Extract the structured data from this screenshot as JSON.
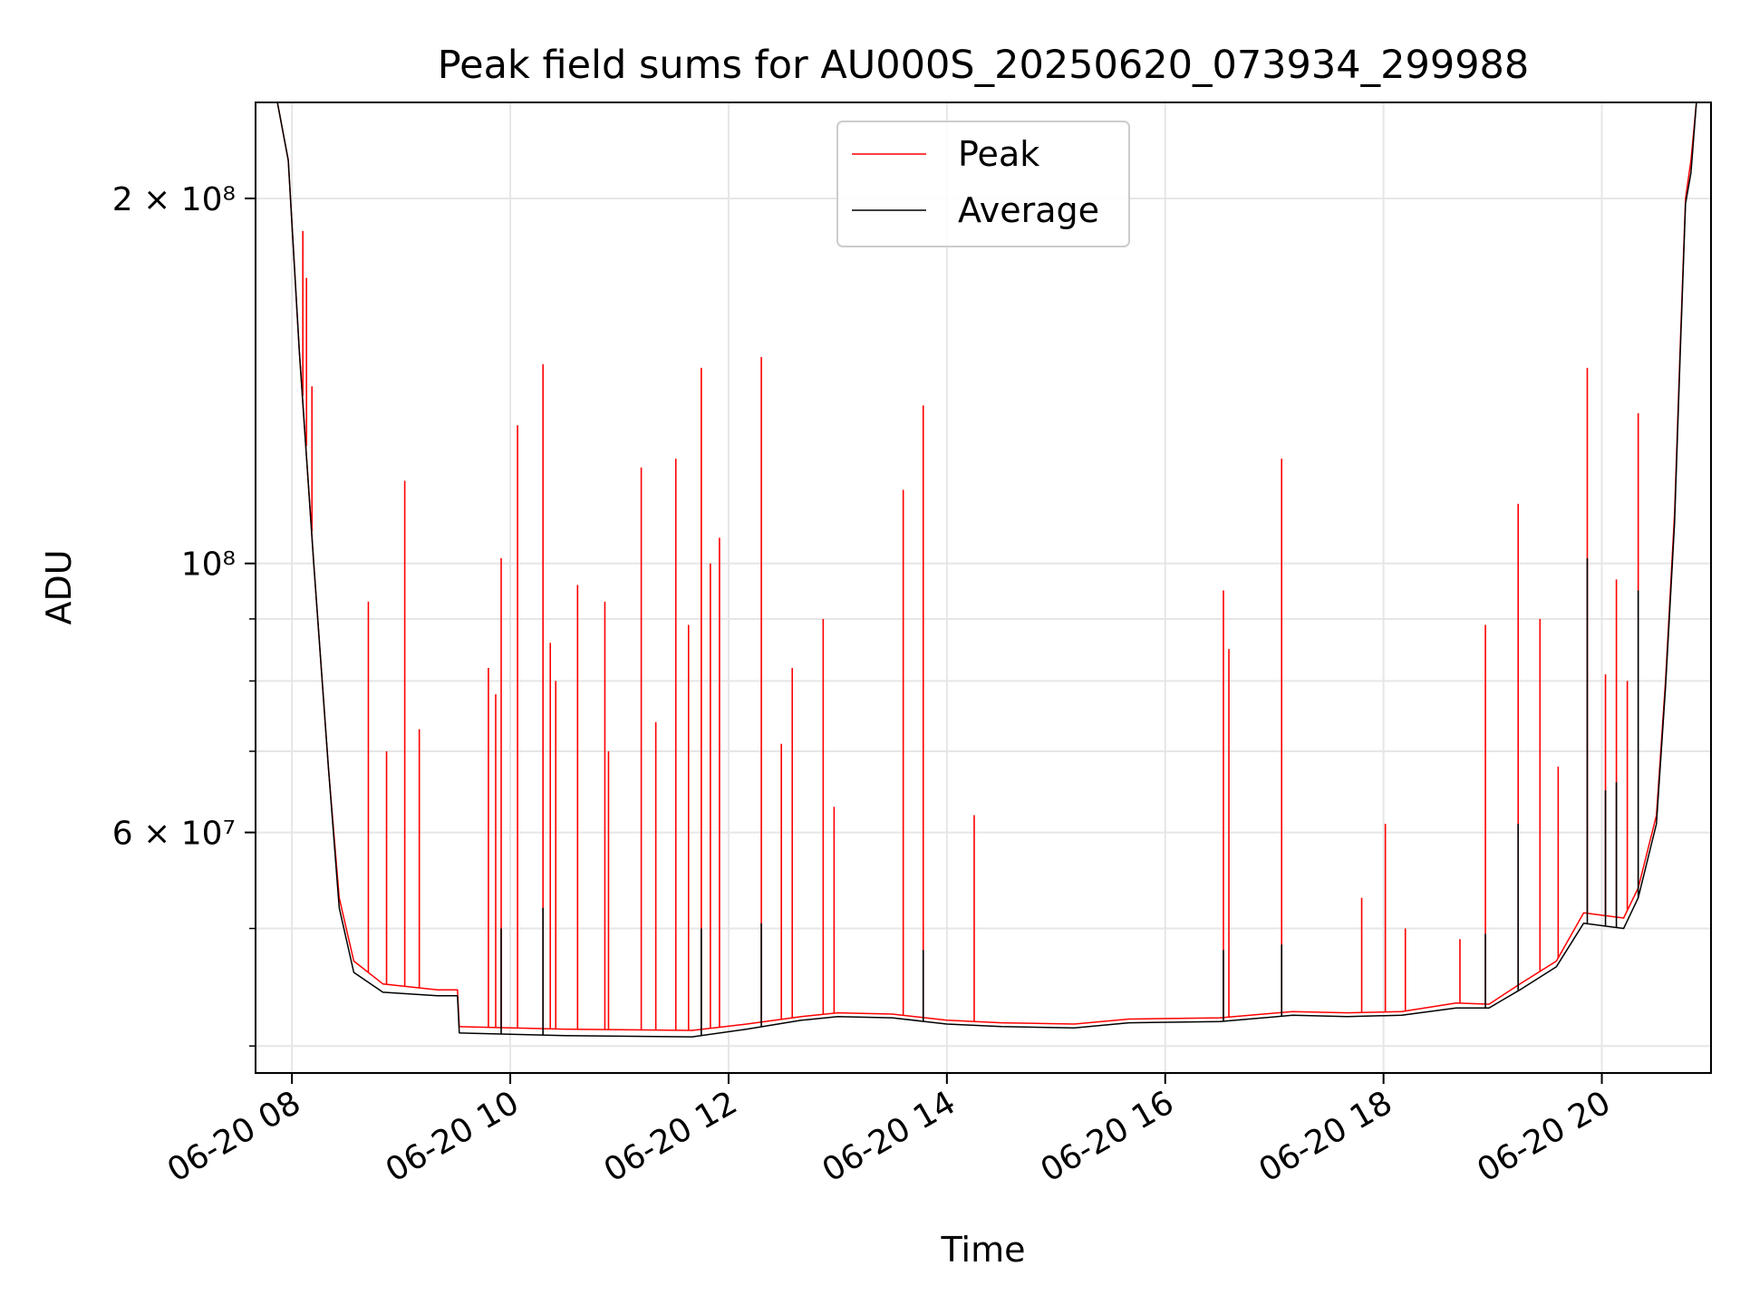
{
  "chart_data": {
    "type": "line",
    "title": "Peak field sums for AU000S_20250620_073934_299988",
    "xlabel": "Time",
    "ylabel": "ADU",
    "y_scale": "log",
    "ylim": [
      38000000,
      240000000
    ],
    "xlim": [
      "06-20 07:40",
      "06-20 21:00"
    ],
    "grid": true,
    "legend_position": "upper-center",
    "x_ticks": [
      {
        "t": "06-20 08:00",
        "label": "06-20 08"
      },
      {
        "t": "06-20 10:00",
        "label": "06-20 10"
      },
      {
        "t": "06-20 12:00",
        "label": "06-20 12"
      },
      {
        "t": "06-20 14:00",
        "label": "06-20 14"
      },
      {
        "t": "06-20 16:00",
        "label": "06-20 16"
      },
      {
        "t": "06-20 18:00",
        "label": "06-20 18"
      },
      {
        "t": "06-20 20:00",
        "label": "06-20 20"
      }
    ],
    "y_major_ticks": [
      {
        "value": 60000000,
        "label": "6 × 10⁷"
      },
      {
        "value": 100000000,
        "label": "10⁸"
      },
      {
        "value": 200000000,
        "label": "2 × 10⁸"
      }
    ],
    "y_minor_ticks": [
      40000000,
      50000000,
      70000000,
      80000000,
      90000000
    ],
    "series": [
      {
        "name": "Peak",
        "color": "#ff0000",
        "baseline": [
          [
            "06-20 07:40",
            240000000
          ],
          [
            "06-20 07:52",
            240000000
          ],
          [
            "06-20 07:58",
            215000000
          ],
          [
            "06-20 08:04",
            150000000
          ],
          [
            "06-20 08:12",
            100000000
          ],
          [
            "06-20 08:20",
            68000000
          ],
          [
            "06-20 08:26",
            53000000
          ],
          [
            "06-20 08:34",
            47000000
          ],
          [
            "06-20 08:50",
            45000000
          ],
          [
            "06-20 09:20",
            44500000
          ],
          [
            "06-20 09:31",
            44500000
          ],
          [
            "06-20 09:32",
            41500000
          ],
          [
            "06-20 10:30",
            41300000
          ],
          [
            "06-20 11:40",
            41200000
          ],
          [
            "06-20 12:10",
            41700000
          ],
          [
            "06-20 12:40",
            42300000
          ],
          [
            "06-20 13:00",
            42600000
          ],
          [
            "06-20 13:30",
            42500000
          ],
          [
            "06-20 14:00",
            42000000
          ],
          [
            "06-20 14:30",
            41800000
          ],
          [
            "06-20 15:10",
            41700000
          ],
          [
            "06-20 15:40",
            42100000
          ],
          [
            "06-20 16:30",
            42200000
          ],
          [
            "06-20 17:10",
            42700000
          ],
          [
            "06-20 17:40",
            42600000
          ],
          [
            "06-20 18:10",
            42700000
          ],
          [
            "06-20 18:40",
            43400000
          ],
          [
            "06-20 18:58",
            43300000
          ],
          [
            "06-20 19:15",
            45000000
          ],
          [
            "06-20 19:35",
            47000000
          ],
          [
            "06-20 19:50",
            51500000
          ],
          [
            "06-20 20:12",
            51000000
          ],
          [
            "06-20 20:20",
            54000000
          ],
          [
            "06-20 20:30",
            62000000
          ],
          [
            "06-20 20:35",
            80000000
          ],
          [
            "06-20 20:40",
            110000000
          ],
          [
            "06-20 20:43",
            150000000
          ],
          [
            "06-20 20:46",
            200000000
          ],
          [
            "06-20 20:49",
            215000000
          ],
          [
            "06-20 20:52",
            240000000
          ],
          [
            "06-20 21:00",
            240000000
          ]
        ],
        "spikes": [
          [
            "06-20 08:06",
            188000000
          ],
          [
            "06-20 08:08",
            172000000
          ],
          [
            "06-20 08:11",
            140000000
          ],
          [
            "06-20 08:42",
            93000000
          ],
          [
            "06-20 08:52",
            70000000
          ],
          [
            "06-20 09:02",
            117000000
          ],
          [
            "06-20 09:10",
            73000000
          ],
          [
            "06-20 09:48",
            82000000
          ],
          [
            "06-20 09:52",
            78000000
          ],
          [
            "06-20 09:55",
            101000000
          ],
          [
            "06-20 10:04",
            130000000
          ],
          [
            "06-20 10:18",
            146000000
          ],
          [
            "06-20 10:22",
            86000000
          ],
          [
            "06-20 10:25",
            80000000
          ],
          [
            "06-20 10:37",
            96000000
          ],
          [
            "06-20 10:52",
            93000000
          ],
          [
            "06-20 10:54",
            70000000
          ],
          [
            "06-20 11:12",
            120000000
          ],
          [
            "06-20 11:20",
            74000000
          ],
          [
            "06-20 11:31",
            122000000
          ],
          [
            "06-20 11:38",
            89000000
          ],
          [
            "06-20 11:45",
            145000000
          ],
          [
            "06-20 11:50",
            100000000
          ],
          [
            "06-20 11:55",
            105000000
          ],
          [
            "06-20 12:18",
            148000000
          ],
          [
            "06-20 12:29",
            71000000
          ],
          [
            "06-20 12:35",
            82000000
          ],
          [
            "06-20 12:52",
            90000000
          ],
          [
            "06-20 12:58",
            63000000
          ],
          [
            "06-20 13:36",
            115000000
          ],
          [
            "06-20 13:47",
            135000000
          ],
          [
            "06-20 14:15",
            62000000
          ],
          [
            "06-20 16:32",
            95000000
          ],
          [
            "06-20 16:35",
            85000000
          ],
          [
            "06-20 17:04",
            122000000
          ],
          [
            "06-20 17:48",
            53000000
          ],
          [
            "06-20 18:01",
            61000000
          ],
          [
            "06-20 18:12",
            50000000
          ],
          [
            "06-20 18:42",
            49000000
          ],
          [
            "06-20 18:56",
            89000000
          ],
          [
            "06-20 19:14",
            112000000
          ],
          [
            "06-20 19:26",
            90000000
          ],
          [
            "06-20 19:36",
            68000000
          ],
          [
            "06-20 19:52",
            145000000
          ],
          [
            "06-20 20:02",
            81000000
          ],
          [
            "06-20 20:08",
            97000000
          ],
          [
            "06-20 20:14",
            80000000
          ],
          [
            "06-20 20:20",
            133000000
          ]
        ]
      },
      {
        "name": "Average",
        "color": "#000000",
        "baseline": [
          [
            "06-20 07:40",
            240000000
          ],
          [
            "06-20 07:52",
            240000000
          ],
          [
            "06-20 07:58",
            215000000
          ],
          [
            "06-20 08:04",
            150000000
          ],
          [
            "06-20 08:12",
            100000000
          ],
          [
            "06-20 08:20",
            68000000
          ],
          [
            "06-20 08:26",
            52000000
          ],
          [
            "06-20 08:34",
            46000000
          ],
          [
            "06-20 08:50",
            44300000
          ],
          [
            "06-20 09:20",
            44000000
          ],
          [
            "06-20 09:31",
            44000000
          ],
          [
            "06-20 09:32",
            41000000
          ],
          [
            "06-20 10:30",
            40800000
          ],
          [
            "06-20 11:40",
            40700000
          ],
          [
            "06-20 12:10",
            41300000
          ],
          [
            "06-20 12:40",
            42000000
          ],
          [
            "06-20 13:00",
            42300000
          ],
          [
            "06-20 13:30",
            42200000
          ],
          [
            "06-20 14:00",
            41700000
          ],
          [
            "06-20 14:30",
            41500000
          ],
          [
            "06-20 15:10",
            41400000
          ],
          [
            "06-20 15:40",
            41800000
          ],
          [
            "06-20 16:30",
            41900000
          ],
          [
            "06-20 17:10",
            42400000
          ],
          [
            "06-20 17:40",
            42300000
          ],
          [
            "06-20 18:10",
            42400000
          ],
          [
            "06-20 18:40",
            43000000
          ],
          [
            "06-20 18:58",
            43000000
          ],
          [
            "06-20 19:15",
            44500000
          ],
          [
            "06-20 19:35",
            46500000
          ],
          [
            "06-20 19:50",
            50500000
          ],
          [
            "06-20 20:12",
            50000000
          ],
          [
            "06-20 20:20",
            53000000
          ],
          [
            "06-20 20:30",
            61000000
          ],
          [
            "06-20 20:35",
            79000000
          ],
          [
            "06-20 20:40",
            108000000
          ],
          [
            "06-20 20:43",
            148000000
          ],
          [
            "06-20 20:46",
            198000000
          ],
          [
            "06-20 20:49",
            210000000
          ],
          [
            "06-20 20:52",
            240000000
          ],
          [
            "06-20 21:00",
            240000000
          ]
        ],
        "spikes": [
          [
            "06-20 09:55",
            50000000
          ],
          [
            "06-20 10:18",
            52000000
          ],
          [
            "06-20 11:45",
            50000000
          ],
          [
            "06-20 12:18",
            50500000
          ],
          [
            "06-20 13:47",
            48000000
          ],
          [
            "06-20 16:32",
            48000000
          ],
          [
            "06-20 17:04",
            48500000
          ],
          [
            "06-20 18:56",
            49500000
          ],
          [
            "06-20 19:14",
            61000000
          ],
          [
            "06-20 19:52",
            101000000
          ],
          [
            "06-20 20:02",
            65000000
          ],
          [
            "06-20 20:08",
            66000000
          ],
          [
            "06-20 20:20",
            95000000
          ]
        ]
      }
    ]
  }
}
